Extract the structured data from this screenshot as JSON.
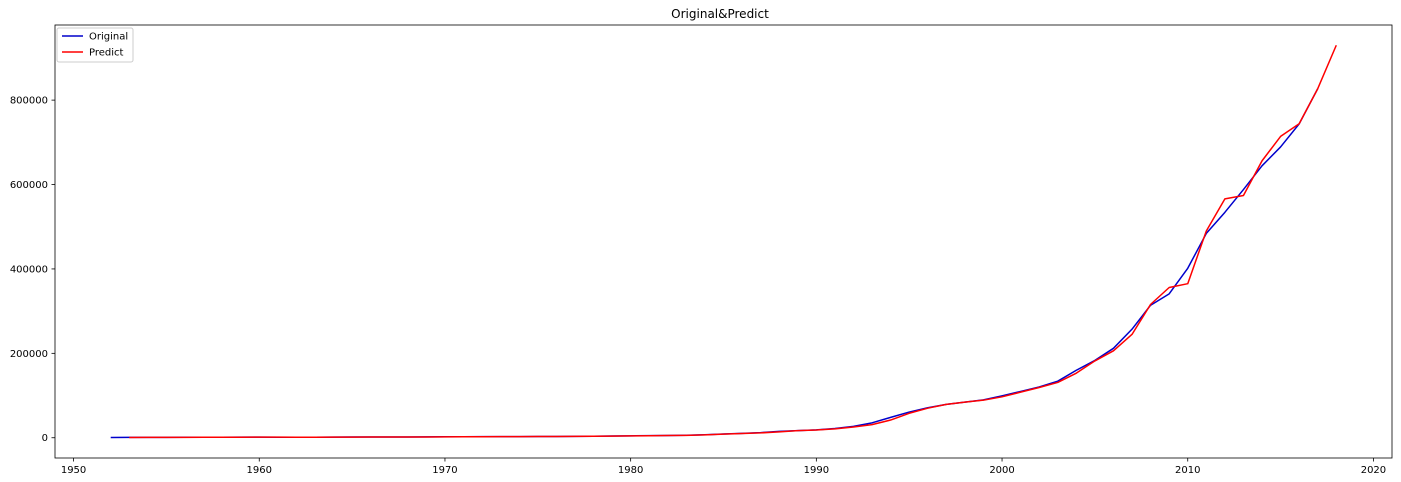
{
  "chart_data": {
    "type": "line",
    "title": "Original&Predict",
    "xlabel": "",
    "ylabel": "",
    "xlim": [
      1949,
      2021
    ],
    "ylim": [
      -48000,
      978000
    ],
    "x_ticks": [
      1950,
      1960,
      1970,
      1980,
      1990,
      2000,
      2010,
      2020
    ],
    "y_ticks": [
      0,
      200000,
      400000,
      600000,
      800000
    ],
    "grid": false,
    "legend_position": "top-left",
    "series": [
      {
        "name": "Original",
        "color": "#0000cc",
        "x": [
          1952,
          1953,
          1954,
          1955,
          1956,
          1957,
          1958,
          1959,
          1960,
          1961,
          1962,
          1963,
          1964,
          1965,
          1966,
          1967,
          1968,
          1969,
          1970,
          1971,
          1972,
          1973,
          1974,
          1975,
          1976,
          1977,
          1978,
          1979,
          1980,
          1981,
          1982,
          1983,
          1984,
          1985,
          1986,
          1987,
          1988,
          1989,
          1990,
          1991,
          1992,
          1993,
          1994,
          1995,
          1996,
          1997,
          1998,
          1999,
          2000,
          2001,
          2002,
          2003,
          2004,
          2005,
          2006,
          2007,
          2008,
          2009,
          2010,
          2011,
          2012,
          2013,
          2014,
          2015,
          2016,
          2017
        ],
        "y": [
          679,
          824,
          859,
          910,
          1028,
          1068,
          1307,
          1439,
          1457,
          1220,
          1149,
          1233,
          1454,
          1716,
          1868,
          1773,
          1723,
          1937,
          2252,
          2426,
          2518,
          2720,
          2789,
          2997,
          2943,
          3201,
          3645,
          4063,
          4546,
          4892,
          5323,
          5963,
          7208,
          9016,
          10275,
          12059,
          15043,
          16992,
          18668,
          21781,
          26923,
          35334,
          48198,
          60794,
          71177,
          78973,
          84402,
          89677,
          99215,
          109655,
          120333,
          133998,
          159878,
          183217,
          211923,
          257306,
          314045,
          340903,
          401513,
          484124,
          534123,
          588019,
          644380,
          689052,
          743586,
          827122
        ]
      },
      {
        "name": "Predict",
        "color": "#ff0000",
        "x": [
          1953,
          1954,
          1955,
          1956,
          1957,
          1958,
          1959,
          1960,
          1961,
          1962,
          1963,
          1964,
          1965,
          1966,
          1967,
          1968,
          1969,
          1970,
          1971,
          1972,
          1973,
          1974,
          1975,
          1976,
          1977,
          1978,
          1979,
          1980,
          1981,
          1982,
          1983,
          1984,
          1985,
          1986,
          1987,
          1988,
          1989,
          1990,
          1991,
          1992,
          1993,
          1994,
          1995,
          1996,
          1997,
          1998,
          1999,
          2000,
          2001,
          2002,
          2003,
          2004,
          2005,
          2006,
          2007,
          2008,
          2009,
          2010,
          2011,
          2012,
          2013,
          2014,
          2015,
          2016,
          2017,
          2018
        ],
        "y": [
          700,
          800,
          880,
          950,
          1040,
          1150,
          1300,
          1500,
          1400,
          1150,
          1200,
          1350,
          1550,
          1900,
          1800,
          1700,
          1850,
          2150,
          2400,
          2500,
          2650,
          2750,
          2900,
          3000,
          3100,
          3400,
          3900,
          4400,
          4800,
          5200,
          5700,
          6800,
          8600,
          10000,
          11500,
          14000,
          17000,
          18500,
          21000,
          25500,
          31000,
          42000,
          58000,
          70000,
          79000,
          84500,
          89000,
          97000,
          108000,
          119000,
          131000,
          153000,
          182000,
          206000,
          245000,
          316000,
          356000,
          365000,
          490000,
          566000,
          574000,
          656000,
          714000,
          744000,
          827000,
          930000
        ]
      }
    ]
  }
}
